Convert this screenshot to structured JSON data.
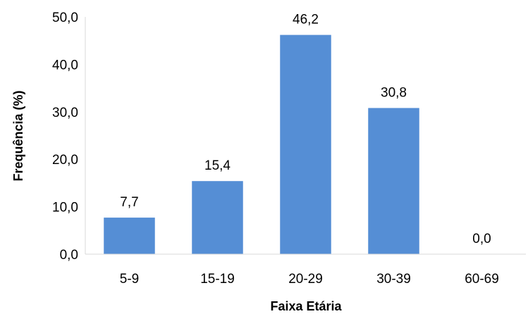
{
  "chart_data": {
    "type": "bar",
    "title": "",
    "xlabel": "Faixa Etária",
    "ylabel": "Frequência (%)",
    "categories": [
      "5-9",
      "15-19",
      "20-29",
      "30-39",
      "60-69"
    ],
    "values": [
      7.7,
      15.4,
      46.2,
      30.8,
      0.0
    ],
    "data_labels": [
      "7,7",
      "15,4",
      "46,2",
      "30,8",
      "0,0"
    ],
    "ylim": [
      0,
      50
    ],
    "yticks": [
      0,
      10,
      20,
      30,
      40,
      50
    ],
    "ytick_labels": [
      "0,0",
      "10,0",
      "20,0",
      "30,0",
      "40,0",
      "50,0"
    ],
    "grid": false,
    "legend": "none",
    "bar_color": "#558ED5"
  }
}
